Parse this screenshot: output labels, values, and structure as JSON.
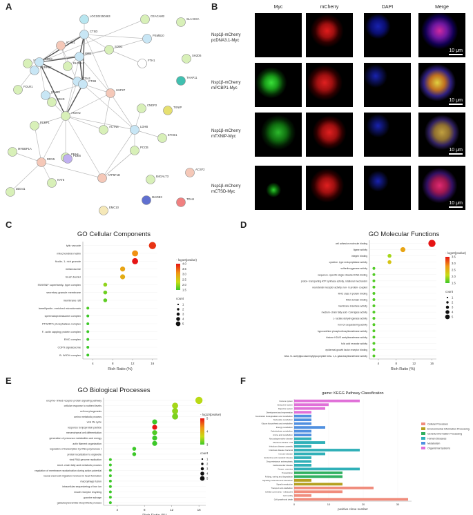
{
  "panel_labels": {
    "a": "A",
    "b": "B",
    "c": "C",
    "d": "D",
    "e": "E",
    "f": "F"
  },
  "network": {
    "nodes": [
      {
        "id": "LOC102150463",
        "color": "#b8e6f0"
      },
      {
        "id": "CEACAM2",
        "color": "#d8f0b8"
      },
      {
        "id": "SLA-DOA",
        "color": "#d8f0b8"
      },
      {
        "id": "PSMB10",
        "color": "#c8e6f5"
      },
      {
        "id": "ICAM1",
        "color": "#f5c8b8"
      },
      {
        "id": "CTSD",
        "color": "#c8e6f5"
      },
      {
        "id": "SOD2",
        "color": "#d8f0b8"
      },
      {
        "id": "FTH1",
        "color": "#ffffff"
      },
      {
        "id": "SH2D6",
        "color": "#d8f0b8"
      },
      {
        "id": "SERPB1",
        "color": "#d8f0b8"
      },
      {
        "id": "SERPB2",
        "color": "#c8e6f5"
      },
      {
        "id": "GRN",
        "color": "#c8e6f5"
      },
      {
        "id": "CD63",
        "color": "#c8e6f5"
      },
      {
        "id": "ELOVL3",
        "color": "#d8f0b8"
      },
      {
        "id": "THAP11",
        "color": "#40c0b0"
      },
      {
        "id": "CD44",
        "color": "#c8e6f5"
      },
      {
        "id": "CTSB",
        "color": "#c8e6f5"
      },
      {
        "id": "FOLR1",
        "color": "#d8f0b8"
      },
      {
        "id": "ICAM2",
        "color": "#c8e6f5"
      },
      {
        "id": "IGHD",
        "color": "#d8f0b8"
      },
      {
        "id": "ANXA2",
        "color": "#d8f0b8"
      },
      {
        "id": "HSP27",
        "color": "#f5c8b8"
      },
      {
        "id": "CNDP2",
        "color": "#d8f0b8"
      },
      {
        "id": "TXNIP",
        "color": "#e6e070"
      },
      {
        "id": "PCBP1",
        "color": "#d8f0b8"
      },
      {
        "id": "ACTN4",
        "color": "#d8f0b8"
      },
      {
        "id": "LDHB",
        "color": "#c8e6f5"
      },
      {
        "id": "ETHE1",
        "color": "#d8f0b8"
      },
      {
        "id": "MYBBP1A",
        "color": "#d8f0b8"
      },
      {
        "id": "PFAS",
        "color": "#d8f0b8"
      },
      {
        "id": "DDX5",
        "color": "#f5c8b8"
      },
      {
        "id": "PCCB",
        "color": "#d8f0b8"
      },
      {
        "id": "ATP5F1D",
        "color": "#f5c8b8"
      },
      {
        "id": "B4GALT3",
        "color": "#d8f0b8"
      },
      {
        "id": "ACSF2",
        "color": "#f5c8b8"
      },
      {
        "id": "PDE6",
        "color": "#c0b0f0"
      },
      {
        "id": "KAT5",
        "color": "#d8f0b8"
      },
      {
        "id": "DDX41",
        "color": "#d8f0b8"
      },
      {
        "id": "MAOB3",
        "color": "#6070d0"
      },
      {
        "id": "TDH4",
        "color": "#f08080"
      },
      {
        "id": "EMC10",
        "color": "#f5e8b8"
      }
    ]
  },
  "microscopy": {
    "columns": [
      "Myc",
      "mCherry",
      "DAPI",
      "Merge"
    ],
    "rows": [
      {
        "line1": "Nsp1β-mCherry",
        "line2": "pcDNA3.1-Myc"
      },
      {
        "line1": "Nsp1β-mCherry",
        "line2": "mPCBP1-Myc"
      },
      {
        "line1": "Nsp1β-mCherry",
        "line2": "mTXNIP-Myc"
      },
      {
        "line1": "Nsp1β-mCherry",
        "line2": "mCTSD-Myc"
      }
    ],
    "scale_label": "10 μm"
  },
  "chart_data": [
    {
      "panel": "C",
      "type": "scatter",
      "title": "GO Cellular Components",
      "xlabel": "Rich Ratio (%)",
      "xticks": [
        4,
        8,
        12,
        16
      ],
      "xlim": [
        2,
        17
      ],
      "legend_color_title": "- log10(pvalue)",
      "color_ticks": [
        4.0,
        3.5,
        3.0,
        2.5,
        2.0,
        1.5
      ],
      "legend_size_title": "count",
      "size_ticks": [
        1,
        2,
        3,
        4,
        5
      ],
      "points": [
        {
          "term": "lytic vacuole",
          "x": 16,
          "count": 5,
          "p": 3.8
        },
        {
          "term": "mitochondrial matrix",
          "x": 12.5,
          "count": 4,
          "p": 3.2
        },
        {
          "term": "ficolin- 1- rich granule",
          "x": 12.5,
          "count": 4,
          "p": 4.0
        },
        {
          "term": "melanosome",
          "x": 10,
          "count": 3,
          "p": 3.0
        },
        {
          "term": "brush border",
          "x": 10,
          "count": 3,
          "p": 2.9
        },
        {
          "term": "SWI/SNF superfamily- type complex",
          "x": 6.5,
          "count": 2,
          "p": 2.0
        },
        {
          "term": "secretory granule membrane",
          "x": 6.5,
          "count": 2,
          "p": 1.8
        },
        {
          "term": "membrane raft",
          "x": 6.5,
          "count": 2,
          "p": 1.7
        },
        {
          "term": "lamellipodin- enriched microdomain",
          "x": 3,
          "count": 1,
          "p": 1.6
        },
        {
          "term": "spermatoproteasome complex",
          "x": 3,
          "count": 1,
          "p": 1.5
        },
        {
          "term": "PTW/PP1 phosphatase complex",
          "x": 3,
          "count": 1,
          "p": 1.5
        },
        {
          "term": "F- actin capping protein complex",
          "x": 3,
          "count": 1,
          "p": 1.5
        },
        {
          "term": "EMC complex",
          "x": 3,
          "count": 1,
          "p": 1.5
        },
        {
          "term": "COP9 signalosome",
          "x": 3,
          "count": 1,
          "p": 1.4
        },
        {
          "term": "B- WICH complex",
          "x": 3,
          "count": 1,
          "p": 1.4
        }
      ]
    },
    {
      "panel": "D",
      "type": "scatter",
      "title": "GO Molecular Functions",
      "xlabel": "Rich Ratio (%)",
      "xticks": [
        4,
        8,
        12,
        16
      ],
      "xlim": [
        2,
        17
      ],
      "legend_color_title": "- log10(pvalue)",
      "color_ticks": [
        3.5,
        3.0,
        2.5,
        2.0,
        1.5
      ],
      "legend_size_title": "count",
      "size_ticks": [
        1,
        2,
        3,
        4,
        5
      ],
      "points": [
        {
          "term": "cell adhesion molecule binding",
          "x": 16,
          "count": 5,
          "p": 3.6
        },
        {
          "term": "ligase activity",
          "x": 9.5,
          "count": 3,
          "p": 2.7
        },
        {
          "term": "integrin binding",
          "x": 6.5,
          "count": 2,
          "p": 2.0
        },
        {
          "term": "cysteine- type endopeptidase activity",
          "x": 6.5,
          "count": 2,
          "p": 2.4
        },
        {
          "term": "sulfurdioxygenase activity",
          "x": 3,
          "count": 1,
          "p": 1.6
        },
        {
          "term": "sequence- specific single stranded DNA binding",
          "x": 3,
          "count": 1,
          "p": 1.6
        },
        {
          "term": "proton- transporting ATP synthase activity, rotational mechanism",
          "x": 3,
          "count": 1,
          "p": 1.6
        },
        {
          "term": "neurotensin receptor activity, non- G protein- coupled",
          "x": 3,
          "count": 1,
          "p": 1.6
        },
        {
          "term": "MHC class II protein binding",
          "x": 3,
          "count": 1,
          "p": 1.6
        },
        {
          "term": "MH2 domain binding",
          "x": 3,
          "count": 1,
          "p": 1.6
        },
        {
          "term": "membrane insertase activity",
          "x": 3,
          "count": 1,
          "p": 1.6
        },
        {
          "term": "medium- chain fatty acid- CoA ligase activity",
          "x": 3,
          "count": 1,
          "p": 1.6
        },
        {
          "term": "L- lactate dehydrogenase activity",
          "x": 3,
          "count": 1,
          "p": 1.6
        },
        {
          "term": "iron ion sequestering activity",
          "x": 3,
          "count": 1,
          "p": 1.6
        },
        {
          "term": "hypoxanthine phosphoribosyltransferase activity",
          "x": 3,
          "count": 1,
          "p": 1.6
        },
        {
          "term": "histone H2A/S acetyltransferase activity",
          "x": 3,
          "count": 1,
          "p": 1.6
        },
        {
          "term": "folic acid receptor activity",
          "x": 3,
          "count": 1,
          "p": 1.6
        },
        {
          "term": "epidermal growth factor receptor binding",
          "x": 3,
          "count": 1,
          "p": 1.6
        },
        {
          "term": "beta- N- acetylglucosaminylglycopeptide beta- 1,4- galactosyltransferase activity",
          "x": 3,
          "count": 1,
          "p": 1.6
        }
      ]
    },
    {
      "panel": "E",
      "type": "scatter",
      "title": "GO Biological Processes",
      "xlabel": "Rich Ratio (%)",
      "xticks": [
        4,
        8,
        12,
        16
      ],
      "xlim": [
        2,
        17
      ],
      "legend_color_title": "- log10(pvalue)",
      "color_ticks": [
        5,
        4,
        3
      ],
      "legend_size_title": "count",
      "size_ticks": [
        1,
        2,
        3,
        4,
        5
      ],
      "points": [
        {
          "term": "enzyme- linked receptor protein signaling pathway",
          "x": 16,
          "count": 5,
          "p": 3.6
        },
        {
          "term": "cellular response to nutrient levels",
          "x": 12.5,
          "count": 4,
          "p": 3.5
        },
        {
          "term": "cell morphogenesis",
          "x": 12.5,
          "count": 4,
          "p": 3.4
        },
        {
          "term": "amino metabolic process",
          "x": 12.5,
          "count": 4,
          "p": 3.3
        },
        {
          "term": "viral life cycle",
          "x": 9.5,
          "count": 3,
          "p": 2.9
        },
        {
          "term": "response to lipoprotein particle",
          "x": 9.5,
          "count": 3,
          "p": 5.0
        },
        {
          "term": "mesenchymal cell differentiation",
          "x": 9.5,
          "count": 3,
          "p": 3.1
        },
        {
          "term": "generation of precursor metabolites and energy",
          "x": 9.5,
          "count": 3,
          "p": 3.0
        },
        {
          "term": "actin filament organization",
          "x": 9.5,
          "count": 3,
          "p": 2.9
        },
        {
          "term": "regulation of transcription by RNA polymerase I",
          "x": 6.5,
          "count": 2,
          "p": 3.0
        },
        {
          "term": "protein localization to organelle",
          "x": 6.5,
          "count": 2,
          "p": 2.8
        },
        {
          "term": "viral RNA genome replication",
          "x": 3,
          "count": 1,
          "p": 2.5
        },
        {
          "term": "short- chain fatty acid metabolic process",
          "x": 3,
          "count": 1,
          "p": 2.5
        },
        {
          "term": "regulation of membrane repolarization during action potential",
          "x": 3,
          "count": 1,
          "p": 2.5
        },
        {
          "term": "neural crest cell migration involved in heart formation",
          "x": 3,
          "count": 1,
          "p": 2.5
        },
        {
          "term": "macrophage fusion",
          "x": 3,
          "count": 1,
          "p": 2.5
        },
        {
          "term": "intracellular sequestering of iron ion",
          "x": 3,
          "count": 1,
          "p": 2.5
        },
        {
          "term": "insulin receptor recycling",
          "x": 3,
          "count": 1,
          "p": 2.5
        },
        {
          "term": "guanine salvage",
          "x": 3,
          "count": 1,
          "p": 2.5
        },
        {
          "term": "galactosylceramide biosynthetic process",
          "x": 3,
          "count": 1,
          "p": 2.5
        }
      ]
    },
    {
      "panel": "F",
      "type": "bar",
      "title": "game: KEGG Pathway Classification",
      "xlabel": "positive clone number",
      "xticks": [
        0,
        10,
        20,
        30
      ],
      "xlim": [
        0,
        34
      ],
      "legend": [
        {
          "name": "Cellular Processes",
          "color": "#f08c7c"
        },
        {
          "name": "Environmental Information Processing",
          "color": "#b5a020"
        },
        {
          "name": "Genetic Information Processing",
          "color": "#30b060"
        },
        {
          "name": "Human Diseases",
          "color": "#30b0b8"
        },
        {
          "name": "Metabolism",
          "color": "#5090e0"
        },
        {
          "name": "Organismal Systems",
          "color": "#e070d8"
        }
      ],
      "bars": [
        {
          "label": "Immune system",
          "value": 19,
          "group": "Organismal Systems"
        },
        {
          "label": "Endocrine system",
          "value": 10,
          "group": "Organismal Systems"
        },
        {
          "label": "Digestive system",
          "value": 9,
          "group": "Organismal Systems"
        },
        {
          "label": "Development and regeneration",
          "value": 5,
          "group": "Organismal Systems"
        },
        {
          "label": "Xenobiotics biodegradation and metabolism",
          "value": 5,
          "group": "Metabolism"
        },
        {
          "label": "Nucleotide metabolism",
          "value": 5,
          "group": "Metabolism"
        },
        {
          "label": "Glycan biosynthesis and metabolism",
          "value": 5,
          "group": "Metabolism"
        },
        {
          "label": "Energy metabolism",
          "value": 9,
          "group": "Metabolism"
        },
        {
          "label": "Carbohydrate metabolism",
          "value": 5,
          "group": "Metabolism"
        },
        {
          "label": "Amino acid metabolism",
          "value": 5,
          "group": "Metabolism"
        },
        {
          "label": "Neurodegenerative disease",
          "value": 5,
          "group": "Human Diseases"
        },
        {
          "label": "Infectious disease: viral",
          "value": 9,
          "group": "Human Diseases"
        },
        {
          "label": "Infectious disease: parasitic",
          "value": 5,
          "group": "Human Diseases"
        },
        {
          "label": "Infectious disease: bacterial",
          "value": 19,
          "group": "Human Diseases"
        },
        {
          "label": "Immune disease",
          "value": 9,
          "group": "Human Diseases"
        },
        {
          "label": "Endocrine and metabolic disease",
          "value": 5,
          "group": "Human Diseases"
        },
        {
          "label": "Drug resistance: antineoplastic",
          "value": 5,
          "group": "Human Diseases"
        },
        {
          "label": "Cardiovascular disease",
          "value": 5,
          "group": "Human Diseases"
        },
        {
          "label": "Cancer: overview",
          "value": 19,
          "group": "Human Diseases"
        },
        {
          "label": "Transcription",
          "value": 14,
          "group": "Genetic Information Processing"
        },
        {
          "label": "Folding, sorting and degradation",
          "value": 14,
          "group": "Genetic Information Processing"
        },
        {
          "label": "Signaling molecules and interaction",
          "value": 5,
          "group": "Environmental Information Processing"
        },
        {
          "label": "Signal transduction",
          "value": 14,
          "group": "Environmental Information Processing"
        },
        {
          "label": "Transport and catabolism",
          "value": 23,
          "group": "Cellular Processes"
        },
        {
          "label": "Cellular community - eukaryotes",
          "value": 14,
          "group": "Cellular Processes"
        },
        {
          "label": "Cell motility",
          "value": 5,
          "group": "Cellular Processes"
        },
        {
          "label": "Cell growth and death",
          "value": 33,
          "group": "Cellular Processes"
        }
      ]
    }
  ]
}
